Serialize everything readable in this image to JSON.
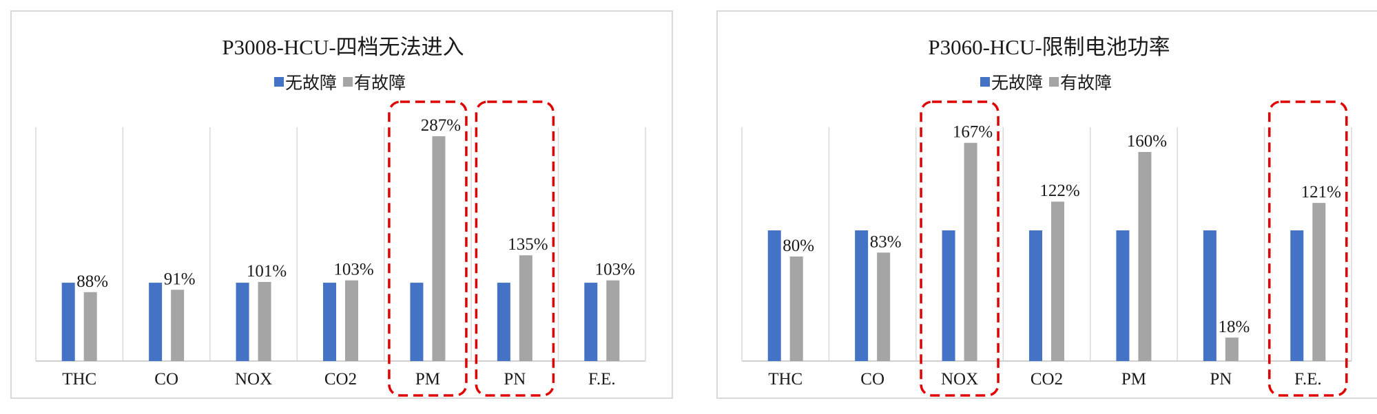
{
  "chart_data": [
    {
      "type": "bar",
      "title": "P3008-HCU-四档无法进入",
      "categories": [
        "THC",
        "CO",
        "NOX",
        "CO2",
        "PM",
        "PN",
        "F.E."
      ],
      "series": [
        {
          "name": "无故障",
          "values": [
            100,
            100,
            100,
            100,
            100,
            100,
            100
          ],
          "color": "#4472c4"
        },
        {
          "name": "有故障",
          "values": [
            88,
            91,
            101,
            103,
            287,
            135,
            103
          ],
          "color": "#a5a5a5"
        }
      ],
      "data_labels": [
        "88%",
        "91%",
        "101%",
        "103%",
        "287%",
        "135%",
        "103%"
      ],
      "highlighted_categories": [
        "PM",
        "PN"
      ],
      "highlight_color": "#e00000",
      "ylim": [
        0,
        300
      ],
      "legend_position": "top",
      "grid": "vertical"
    },
    {
      "type": "bar",
      "title": "P3060-HCU-限制电池功率",
      "categories": [
        "THC",
        "CO",
        "NOX",
        "CO2",
        "PM",
        "PN",
        "F.E."
      ],
      "series": [
        {
          "name": "无故障",
          "values": [
            100,
            100,
            100,
            100,
            100,
            100,
            100
          ],
          "color": "#4472c4"
        },
        {
          "name": "有故障",
          "values": [
            80,
            83,
            167,
            122,
            160,
            18,
            121
          ],
          "color": "#a5a5a5"
        }
      ],
      "data_labels": [
        "80%",
        "83%",
        "167%",
        "122%",
        "160%",
        "18%",
        "121%"
      ],
      "highlighted_categories": [
        "NOX",
        "F.E."
      ],
      "highlight_color": "#e00000",
      "ylim": [
        0,
        180
      ],
      "legend_position": "top",
      "grid": "vertical"
    }
  ]
}
